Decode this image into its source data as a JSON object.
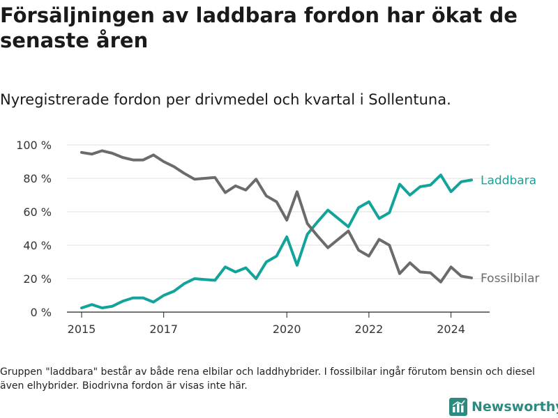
{
  "title": "Försäljningen av laddbara fordon har ökat de senaste åren",
  "subtitle": "Nyregistrerade fordon per drivmedel och kvartal i Sollentuna.",
  "footnote": "Gruppen \"laddbara\" består av både rena elbilar och laddhybrider. I fossilbilar ingår förutom bensin och diesel även elhybrider. Biodrivna fordon är visas inte här.",
  "brand": {
    "name": "Newsworthy",
    "icon": "bar-chart-logo-icon"
  },
  "chart_data": {
    "type": "line",
    "title": "Försäljningen av laddbara fordon har ökat de senaste åren",
    "xlabel": "",
    "ylabel": "",
    "xlim": [
      2014.6,
      2025.1
    ],
    "ylim": [
      0,
      100
    ],
    "grid": true,
    "legend": "inline-right",
    "x_ticks": [
      2015,
      2017,
      2020,
      2022,
      2024
    ],
    "y_ticks": [
      0,
      20,
      40,
      60,
      80,
      100
    ],
    "y_tick_labels": [
      "0 %",
      "20 %",
      "40 %",
      "60 %",
      "80 %",
      "100 %"
    ],
    "x": [
      2015.0,
      2015.25,
      2015.5,
      2015.75,
      2016.0,
      2016.25,
      2016.5,
      2016.75,
      2017.0,
      2017.25,
      2017.5,
      2017.75,
      2018.0,
      2018.25,
      2018.5,
      2018.75,
      2019.0,
      2019.25,
      2019.5,
      2019.75,
      2020.0,
      2020.25,
      2020.5,
      2020.75,
      2021.0,
      2021.25,
      2021.5,
      2021.75,
      2022.0,
      2022.25,
      2022.5,
      2022.75,
      2023.0,
      2023.25,
      2023.5,
      2023.75,
      2024.0,
      2024.25,
      2024.5
    ],
    "series": [
      {
        "name": "Laddbara",
        "color": "#12a39a",
        "values": [
          2.5,
          4.5,
          2.5,
          3.5,
          6.5,
          8.5,
          8.5,
          6.0,
          10.0,
          12.5,
          17.0,
          20.0,
          19.5,
          19.0,
          27.0,
          24.0,
          26.5,
          20.0,
          30.0,
          33.5,
          45.0,
          28.0,
          46.5,
          54.0,
          61.0,
          56.0,
          51.0,
          62.5,
          66.0,
          56.0,
          59.5,
          76.5,
          70.0,
          75.0,
          76.0,
          82.0,
          72.0,
          78.0,
          79.0
        ]
      },
      {
        "name": "Fossilbilar",
        "color": "#6b6b6b",
        "values": [
          95.5,
          94.5,
          96.5,
          95.0,
          92.5,
          91.0,
          91.0,
          94.0,
          90.0,
          87.0,
          83.0,
          79.5,
          80.0,
          80.5,
          71.5,
          75.5,
          73.0,
          79.5,
          69.5,
          66.0,
          55.0,
          72.0,
          53.0,
          45.5,
          38.5,
          43.5,
          48.5,
          37.0,
          33.5,
          43.5,
          40.0,
          23.0,
          29.5,
          24.0,
          23.5,
          18.0,
          27.0,
          21.5,
          20.5
        ]
      }
    ]
  }
}
